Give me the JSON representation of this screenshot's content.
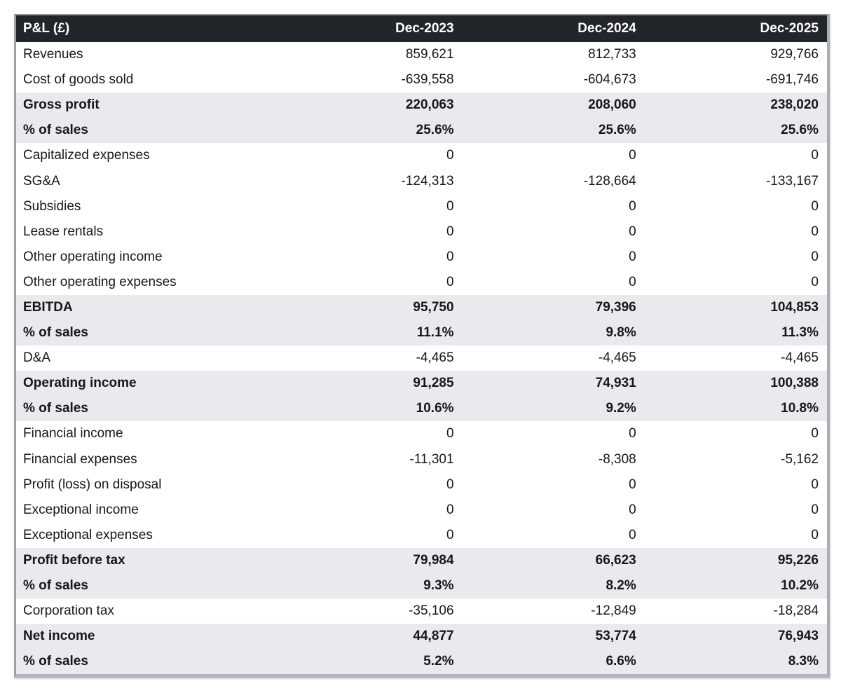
{
  "colors": {
    "header_bg": "#22262b",
    "header_text": "#ffffff",
    "band_bg": "#e9e9ee",
    "body_text": "#15171a",
    "border": "#a9adb4",
    "border_dark": "#b3b6bd"
  },
  "chart_data": {
    "type": "table",
    "title": "P&L (£)",
    "columns": [
      "Dec-2023",
      "Dec-2024",
      "Dec-2025"
    ],
    "rows": [
      {
        "label": "Revenues",
        "display": [
          "859,621",
          "812,733",
          "929,766"
        ],
        "values": [
          859621,
          812733,
          929766
        ],
        "bold": false
      },
      {
        "label": "Cost of goods sold",
        "display": [
          "-639,558",
          "-604,673",
          "-691,746"
        ],
        "values": [
          -639558,
          -604673,
          -691746
        ],
        "bold": false
      },
      {
        "label": "Gross profit",
        "display": [
          "220,063",
          "208,060",
          "238,020"
        ],
        "values": [
          220063,
          208060,
          238020
        ],
        "bold": true
      },
      {
        "label": "% of sales",
        "display": [
          "25.6%",
          "25.6%",
          "25.6%"
        ],
        "values": [
          25.6,
          25.6,
          25.6
        ],
        "bold": true
      },
      {
        "label": "Capitalized expenses",
        "display": [
          "0",
          "0",
          "0"
        ],
        "values": [
          0,
          0,
          0
        ],
        "bold": false
      },
      {
        "label": "SG&A",
        "display": [
          "-124,313",
          "-128,664",
          "-133,167"
        ],
        "values": [
          -124313,
          -128664,
          -133167
        ],
        "bold": false
      },
      {
        "label": "Subsidies",
        "display": [
          "0",
          "0",
          "0"
        ],
        "values": [
          0,
          0,
          0
        ],
        "bold": false
      },
      {
        "label": "Lease rentals",
        "display": [
          "0",
          "0",
          "0"
        ],
        "values": [
          0,
          0,
          0
        ],
        "bold": false
      },
      {
        "label": "Other operating income",
        "display": [
          "0",
          "0",
          "0"
        ],
        "values": [
          0,
          0,
          0
        ],
        "bold": false
      },
      {
        "label": "Other operating expenses",
        "display": [
          "0",
          "0",
          "0"
        ],
        "values": [
          0,
          0,
          0
        ],
        "bold": false
      },
      {
        "label": "EBITDA",
        "display": [
          "95,750",
          "79,396",
          "104,853"
        ],
        "values": [
          95750,
          79396,
          104853
        ],
        "bold": true
      },
      {
        "label": "% of sales",
        "display": [
          "11.1%",
          "9.8%",
          "11.3%"
        ],
        "values": [
          11.1,
          9.8,
          11.3
        ],
        "bold": true
      },
      {
        "label": "D&A",
        "display": [
          "-4,465",
          "-4,465",
          "-4,465"
        ],
        "values": [
          -4465,
          -4465,
          -4465
        ],
        "bold": false
      },
      {
        "label": "Operating income",
        "display": [
          "91,285",
          "74,931",
          "100,388"
        ],
        "values": [
          91285,
          74931,
          100388
        ],
        "bold": true
      },
      {
        "label": "% of sales",
        "display": [
          "10.6%",
          "9.2%",
          "10.8%"
        ],
        "values": [
          10.6,
          9.2,
          10.8
        ],
        "bold": true
      },
      {
        "label": "Financial income",
        "display": [
          "0",
          "0",
          "0"
        ],
        "values": [
          0,
          0,
          0
        ],
        "bold": false
      },
      {
        "label": "Financial expenses",
        "display": [
          "-11,301",
          "-8,308",
          "-5,162"
        ],
        "values": [
          -11301,
          -8308,
          -5162
        ],
        "bold": false
      },
      {
        "label": "Profit (loss) on disposal",
        "display": [
          "0",
          "0",
          "0"
        ],
        "values": [
          0,
          0,
          0
        ],
        "bold": false
      },
      {
        "label": "Exceptional income",
        "display": [
          "0",
          "0",
          "0"
        ],
        "values": [
          0,
          0,
          0
        ],
        "bold": false
      },
      {
        "label": "Exceptional expenses",
        "display": [
          "0",
          "0",
          "0"
        ],
        "values": [
          0,
          0,
          0
        ],
        "bold": false
      },
      {
        "label": "Profit before tax",
        "display": [
          "79,984",
          "66,623",
          "95,226"
        ],
        "values": [
          79984,
          66623,
          95226
        ],
        "bold": true
      },
      {
        "label": "% of sales",
        "display": [
          "9.3%",
          "8.2%",
          "10.2%"
        ],
        "values": [
          9.3,
          8.2,
          10.2
        ],
        "bold": true
      },
      {
        "label": "Corporation tax",
        "display": [
          "-35,106",
          "-12,849",
          "-18,284"
        ],
        "values": [
          -35106,
          -12849,
          -18284
        ],
        "bold": false
      },
      {
        "label": "Net income",
        "display": [
          "44,877",
          "53,774",
          "76,943"
        ],
        "values": [
          44877,
          53774,
          76943
        ],
        "bold": true
      },
      {
        "label": "% of sales",
        "display": [
          "5.2%",
          "6.6%",
          "8.3%"
        ],
        "values": [
          5.2,
          6.6,
          8.3
        ],
        "bold": true
      }
    ]
  }
}
